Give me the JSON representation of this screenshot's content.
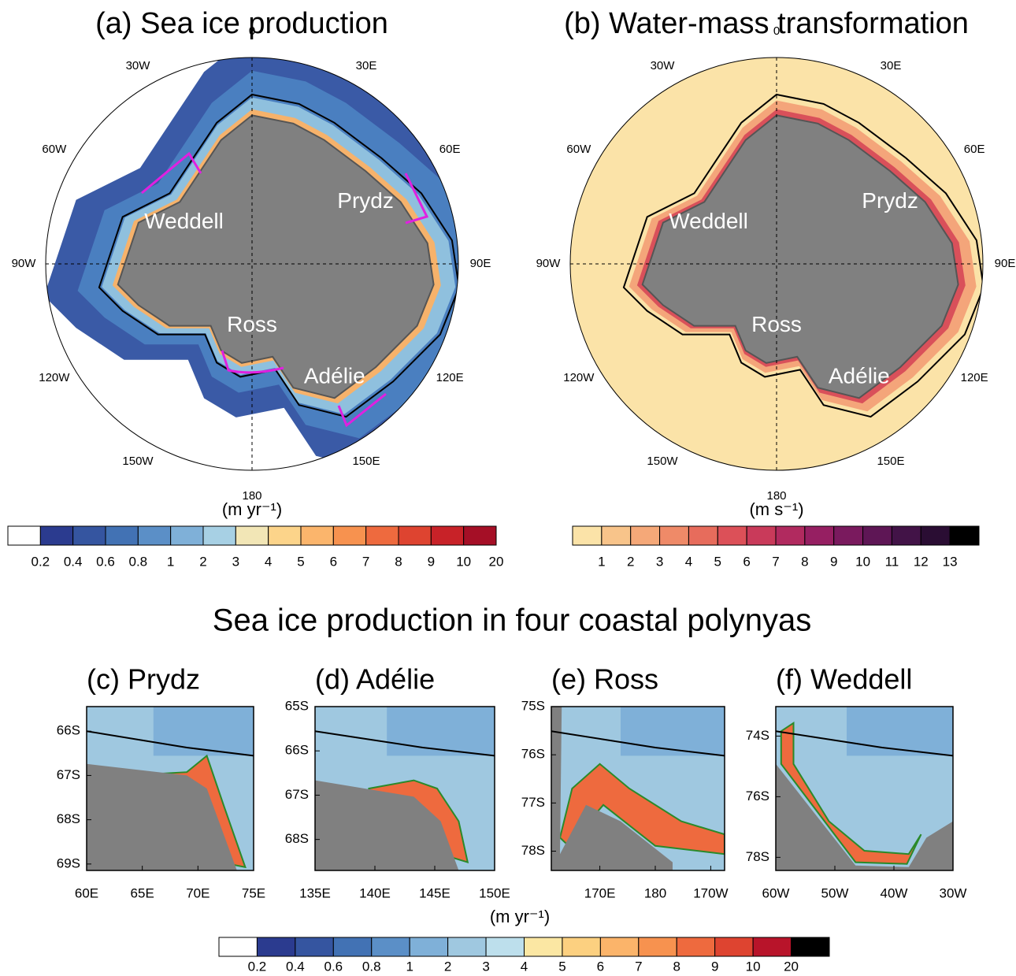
{
  "maps": [
    {
      "title": "(a) Sea ice production",
      "lon_labels": [
        "0",
        "30E",
        "60E",
        "90E",
        "120E",
        "150E",
        "180",
        "150W",
        "120W",
        "90W",
        "60W",
        "30W"
      ],
      "regions": [
        "Weddell",
        "Prydz",
        "Ross",
        "Adélie"
      ],
      "colorbar": {
        "unit": "(m yr⁻¹)",
        "labels": [
          "0.2",
          "0.4",
          "0.6",
          "0.8",
          "1",
          "2",
          "3",
          "4",
          "5",
          "6",
          "7",
          "8",
          "9",
          "10",
          "20"
        ],
        "colors": [
          "#ffffff",
          "#2b3b8f",
          "#3555a0",
          "#4272b4",
          "#5b8fc7",
          "#7fb0d8",
          "#a7d0e4",
          "#f2e6b6",
          "#fcd48a",
          "#fbb56c",
          "#f7924f",
          "#ee6a3e",
          "#de4430",
          "#c82228",
          "#a50f26"
        ]
      }
    },
    {
      "title": "(b) Water-mass transformation",
      "lon_labels": [
        "0",
        "30E",
        "60E",
        "90E",
        "120E",
        "150E",
        "180",
        "150W",
        "120W",
        "90W",
        "60W",
        "30W"
      ],
      "regions": [
        "Weddell",
        "Prydz",
        "Ross",
        "Adélie"
      ],
      "colorbar": {
        "unit": "(m s⁻¹)",
        "labels": [
          "1",
          "2",
          "3",
          "4",
          "5",
          "6",
          "7",
          "8",
          "9",
          "10",
          "11",
          "12",
          "13"
        ],
        "colors": [
          "#fbe3a8",
          "#f8c48a",
          "#f5a878",
          "#ef8a68",
          "#e76c5c",
          "#dc5058",
          "#c93a5a",
          "#b12a5f",
          "#961f62",
          "#7a1a5e",
          "#5e1655",
          "#421347",
          "#2a0d33",
          "#000000"
        ]
      }
    }
  ],
  "subtitle": "Sea ice production in four coastal polynyas",
  "panels": [
    {
      "title": "(c) Prydz",
      "yticks": [
        "66S",
        "67S",
        "68S",
        "69S"
      ],
      "xticks": [
        "60E",
        "65E",
        "70E",
        "75E"
      ]
    },
    {
      "title": "(d) Adélie",
      "yticks": [
        "65S",
        "66S",
        "67S",
        "68S"
      ],
      "xticks": [
        "135E",
        "140E",
        "145E",
        "150E"
      ]
    },
    {
      "title": "(e) Ross",
      "yticks": [
        "75S",
        "76S",
        "77S",
        "78S"
      ],
      "xticks": [
        "170E",
        "180",
        "170W"
      ]
    },
    {
      "title": "(f) Weddell",
      "yticks": [
        "74S",
        "76S",
        "78S"
      ],
      "xticks": [
        "60W",
        "50W",
        "40W",
        "30W"
      ]
    }
  ],
  "colorbar": {
    "unit": "(m yr⁻¹)",
    "labels": [
      "0.2",
      "0.4",
      "0.6",
      "0.8",
      "1",
      "2",
      "3",
      "4",
      "5",
      "6",
      "7",
      "8",
      "9",
      "10",
      "20"
    ],
    "colors": [
      "#ffffff",
      "#2b3b8f",
      "#3555a0",
      "#4272b4",
      "#5b8fc7",
      "#7fb0d8",
      "#9fc8e0",
      "#bddfec",
      "#fbe7a3",
      "#fcd080",
      "#fbb46a",
      "#f7924f",
      "#ee6a3e",
      "#de4430",
      "#b8142a",
      "#000000"
    ]
  }
}
